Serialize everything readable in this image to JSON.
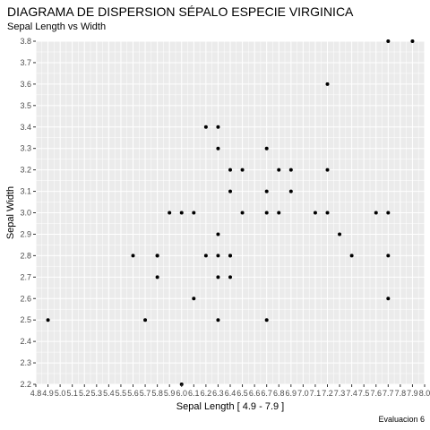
{
  "chart_data": {
    "type": "scatter",
    "title": "DIAGRAMA DE DISPERSION SÉPALO ESPECIE VIRGINICA",
    "subtitle": "Sepal Length vs Width",
    "caption": "Evaluacion 6",
    "xlabel": "Sepal Length [ 4.9 - 7.9 ]",
    "ylabel": "Sepal Width",
    "xlim": [
      4.8,
      8.0
    ],
    "ylim": [
      2.2,
      3.8
    ],
    "x_ticks": [
      4.8,
      4.9,
      5.0,
      5.1,
      5.2,
      5.3,
      5.4,
      5.5,
      5.6,
      5.7,
      5.8,
      5.9,
      6.0,
      6.1,
      6.2,
      6.3,
      6.4,
      6.5,
      6.6,
      6.7,
      6.8,
      6.9,
      7.0,
      7.1,
      7.2,
      7.3,
      7.4,
      7.5,
      7.6,
      7.7,
      7.8,
      7.9,
      8.0
    ],
    "y_ticks": [
      2.2,
      2.3,
      2.4,
      2.5,
      2.6,
      2.7,
      2.8,
      2.9,
      3.0,
      3.1,
      3.2,
      3.3,
      3.4,
      3.5,
      3.6,
      3.7,
      3.8
    ],
    "grid": true,
    "panel_color": "#ebebeb",
    "grid_color": "#ffffff",
    "point_color": "#000000",
    "points": [
      [
        4.9,
        2.5
      ],
      [
        5.6,
        2.8
      ],
      [
        5.7,
        2.5
      ],
      [
        5.8,
        2.8
      ],
      [
        5.8,
        2.7
      ],
      [
        5.8,
        2.8
      ],
      [
        5.9,
        3.0
      ],
      [
        6.0,
        2.2
      ],
      [
        6.0,
        3.0
      ],
      [
        6.1,
        3.0
      ],
      [
        6.1,
        2.6
      ],
      [
        6.2,
        3.4
      ],
      [
        6.2,
        2.8
      ],
      [
        6.3,
        3.3
      ],
      [
        6.3,
        2.7
      ],
      [
        6.3,
        2.9
      ],
      [
        6.3,
        2.5
      ],
      [
        6.3,
        3.4
      ],
      [
        6.3,
        2.8
      ],
      [
        6.4,
        2.8
      ],
      [
        6.4,
        3.2
      ],
      [
        6.4,
        2.7
      ],
      [
        6.4,
        3.1
      ],
      [
        6.4,
        2.8
      ],
      [
        6.5,
        3.0
      ],
      [
        6.5,
        3.2
      ],
      [
        6.7,
        2.5
      ],
      [
        6.7,
        3.3
      ],
      [
        6.7,
        3.0
      ],
      [
        6.7,
        3.1
      ],
      [
        6.8,
        3.0
      ],
      [
        6.8,
        3.2
      ],
      [
        6.9,
        3.2
      ],
      [
        6.9,
        3.1
      ],
      [
        7.1,
        3.0
      ],
      [
        7.2,
        3.6
      ],
      [
        7.2,
        3.2
      ],
      [
        7.2,
        3.0
      ],
      [
        7.3,
        2.9
      ],
      [
        7.4,
        2.8
      ],
      [
        7.6,
        3.0
      ],
      [
        7.7,
        3.8
      ],
      [
        7.7,
        2.6
      ],
      [
        7.7,
        2.8
      ],
      [
        7.7,
        3.0
      ],
      [
        7.9,
        3.8
      ]
    ]
  }
}
